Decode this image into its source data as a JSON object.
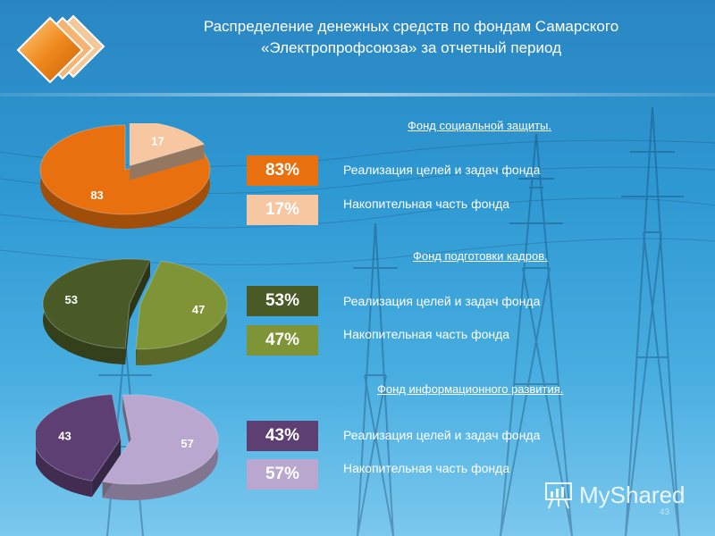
{
  "title_line1": "Распределение денежных средств по фондам Самарского",
  "title_line2": "«Электропрофсоюза» за отчетный период",
  "chart_data": [
    {
      "type": "pie",
      "title": "Фонд социальной защиты.",
      "categories": [
        "Реализация целей и задач фонда",
        "Накопительная часть фонда"
      ],
      "values": [
        83,
        17
      ],
      "percent_labels": [
        "83%",
        "17%"
      ],
      "colors": [
        "#e8700f",
        "#f7c7a2"
      ]
    },
    {
      "type": "pie",
      "title": "Фонд подготовки кадров.",
      "categories": [
        "Реализация целей и задач фонда",
        "Накопительная часть фонда"
      ],
      "values": [
        53,
        47
      ],
      "percent_labels": [
        "53%",
        "47%"
      ],
      "colors": [
        "#4a5a26",
        "#7f9437"
      ]
    },
    {
      "type": "pie",
      "title": "Фонд информационного развития.",
      "categories": [
        "Реализация целей и задач фонда",
        "Накопительная часть фонда"
      ],
      "values": [
        43,
        57
      ],
      "percent_labels": [
        "43%",
        "57%"
      ],
      "colors": [
        "#5e3f74",
        "#b9a7cf"
      ]
    }
  ],
  "watermark": "MyShared",
  "page_number": "43"
}
